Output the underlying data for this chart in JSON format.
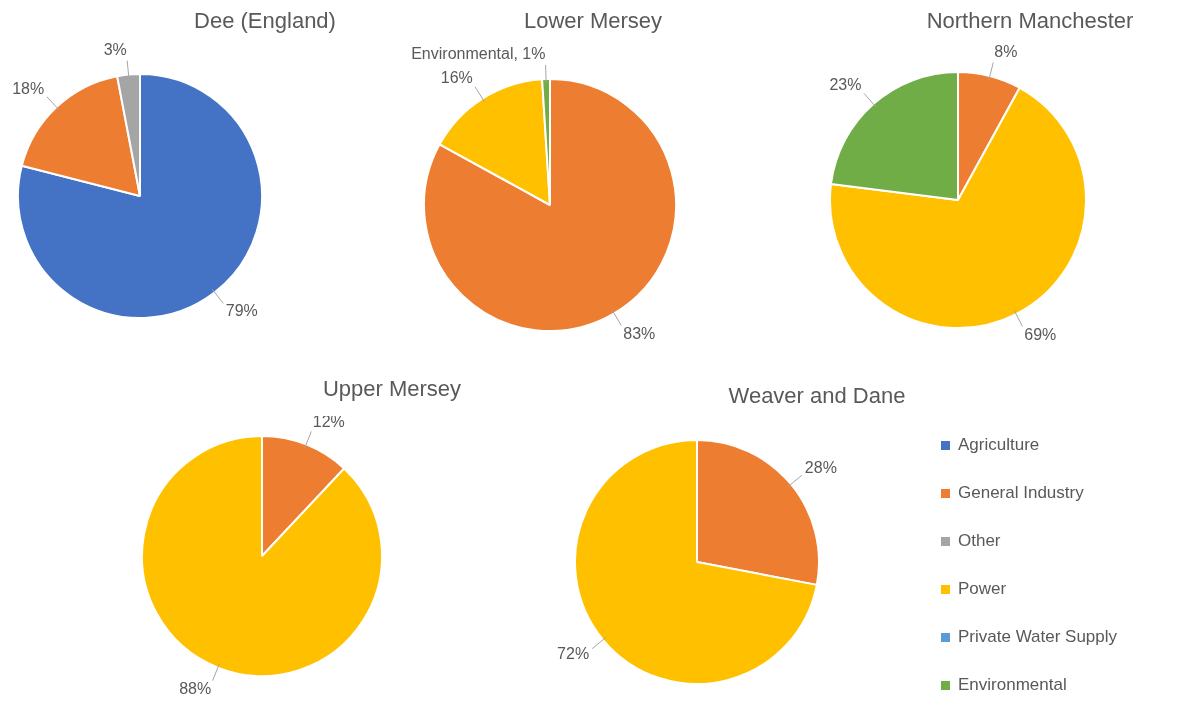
{
  "chart_data": [
    {
      "type": "pie",
      "title": "Dee (England)",
      "categories": [
        null,
        null,
        null
      ],
      "values": [
        79,
        18,
        3
      ],
      "colors": [
        "#4472c4",
        "#ed7d31",
        "#a5a5a5"
      ],
      "value_labels": [
        "79%",
        "18%",
        "3%"
      ]
    },
    {
      "type": "pie",
      "title": "Lower Mersey",
      "categories": [
        null,
        null,
        null
      ],
      "values": [
        83,
        16,
        1
      ],
      "colors": [
        "#ed7d31",
        "#ffc000",
        "#70ad47"
      ],
      "value_labels": [
        "83%",
        "16%",
        "Environmental, 1%"
      ]
    },
    {
      "type": "pie",
      "title": "Northern Manchester",
      "categories": [
        null,
        null,
        null
      ],
      "values": [
        8,
        69,
        23
      ],
      "colors": [
        "#ed7d31",
        "#ffc000",
        "#70ad47"
      ],
      "value_labels": [
        "8%",
        "69%",
        "23%"
      ]
    },
    {
      "type": "pie",
      "title": "Upper Mersey",
      "categories": [
        null,
        null
      ],
      "values": [
        12,
        88
      ],
      "colors": [
        "#ed7d31",
        "#ffc000"
      ],
      "value_labels": [
        "12%",
        "88%"
      ]
    },
    {
      "type": "pie",
      "title": "Weaver and Dane",
      "categories": [
        "Agriculture",
        "General Industry",
        "Other",
        "Power",
        "Private Water Supply",
        "Environmental"
      ],
      "values": [
        0,
        28,
        0,
        72,
        0,
        0
      ],
      "colors": [
        "#4472c4",
        "#ed7d31",
        "#a5a5a5",
        "#ffc000",
        "#5b9bd5",
        "#70ad47"
      ],
      "value_labels": [
        null,
        "28%",
        null,
        "72%",
        null,
        null
      ],
      "legend": "right"
    }
  ]
}
